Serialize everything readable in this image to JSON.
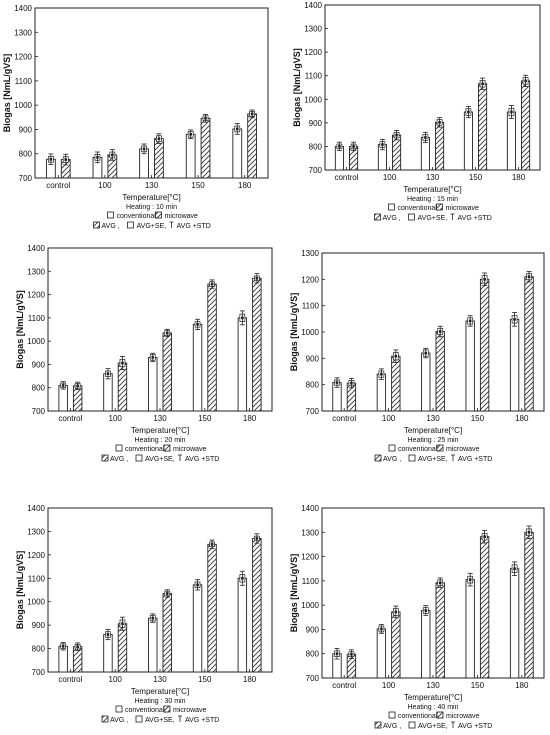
{
  "legend": {
    "series_conventional": "conventional,",
    "series_microwave": "microwave",
    "stat_avg": "AVG ,",
    "stat_se": "AVG+SE,",
    "stat_std": "AVG +STD"
  },
  "chart_data": [
    {
      "type": "bar",
      "ylabel": "Biogas [NmL/gVS]",
      "xlabel": "Temperature[°C]",
      "heating_label": "Heating : 10 min",
      "ylim": [
        700,
        1400
      ],
      "yticks": [
        700,
        800,
        900,
        1000,
        1100,
        1200,
        1300,
        1400
      ],
      "grid": false,
      "categories": [
        "control",
        "100",
        "130",
        "150",
        "180"
      ],
      "series": [
        {
          "name": "conventional",
          "values": [
            777,
            785,
            820,
            880,
            902
          ],
          "se": [
            12,
            12,
            12,
            12,
            12
          ],
          "std": [
            22,
            22,
            20,
            18,
            22
          ]
        },
        {
          "name": "microwave",
          "values": [
            776,
            795,
            862,
            946,
            964
          ],
          "se": [
            12,
            12,
            12,
            10,
            10
          ],
          "std": [
            22,
            22,
            20,
            16,
            16
          ]
        }
      ]
    },
    {
      "type": "bar",
      "ylabel": "Biogas [NmL/gVS]",
      "xlabel": "Temperature[°C]",
      "heating_label": "Heating : 15 min",
      "ylim": [
        700,
        1400
      ],
      "yticks": [
        700,
        800,
        900,
        1000,
        1100,
        1200,
        1300,
        1400
      ],
      "grid": false,
      "categories": [
        "control",
        "100",
        "130",
        "150",
        "180"
      ],
      "series": [
        {
          "name": "conventional",
          "values": [
            800,
            808,
            838,
            946,
            946
          ],
          "se": [
            10,
            12,
            12,
            14,
            16
          ],
          "std": [
            18,
            22,
            22,
            24,
            28
          ]
        },
        {
          "name": "microwave",
          "values": [
            800,
            848,
            902,
            1066,
            1078
          ],
          "se": [
            10,
            12,
            12,
            14,
            14
          ],
          "std": [
            18,
            20,
            20,
            24,
            24
          ]
        }
      ]
    },
    {
      "type": "bar",
      "ylabel": "Biogas [NmL/gVS]",
      "xlabel": "Temperature[°C]",
      "heating_label": "Heating : 20 min",
      "ylim": [
        700,
        1400
      ],
      "yticks": [
        700,
        800,
        900,
        1000,
        1100,
        1200,
        1300,
        1400
      ],
      "grid": false,
      "categories": [
        "control",
        "100",
        "130",
        "150",
        "180"
      ],
      "series": [
        {
          "name": "conventional",
          "values": [
            810,
            860,
            930,
            1072,
            1100
          ],
          "se": [
            10,
            12,
            12,
            12,
            16
          ],
          "std": [
            16,
            22,
            18,
            22,
            30
          ]
        },
        {
          "name": "microwave",
          "values": [
            808,
            906,
            1035,
            1245,
            1270
          ],
          "se": [
            10,
            16,
            10,
            10,
            10
          ],
          "std": [
            16,
            28,
            16,
            18,
            20
          ]
        }
      ]
    },
    {
      "type": "bar",
      "ylabel": "Biogas [NmL/gVS]",
      "xlabel": "Temperature[°C]",
      "heating_label": "Heating : 25 min",
      "ylim": [
        700,
        1300
      ],
      "yticks": [
        700,
        800,
        900,
        1000,
        1100,
        1200,
        1300
      ],
      "grid": false,
      "categories": [
        "control",
        "100",
        "130",
        "150",
        "180"
      ],
      "series": [
        {
          "name": "conventional",
          "values": [
            808,
            840,
            920,
            1042,
            1048
          ],
          "se": [
            10,
            12,
            12,
            12,
            14
          ],
          "std": [
            18,
            20,
            18,
            20,
            26
          ]
        },
        {
          "name": "microwave",
          "values": [
            806,
            908,
            1002,
            1200,
            1210
          ],
          "se": [
            10,
            14,
            12,
            14,
            12
          ],
          "std": [
            18,
            24,
            20,
            24,
            20
          ]
        }
      ]
    },
    {
      "type": "bar",
      "ylabel": "Biogas [NmL/gVS]",
      "xlabel": "Temperature[°C]",
      "heating_label": "Heating : 30 min",
      "ylim": [
        700,
        1400
      ],
      "yticks": [
        700,
        800,
        900,
        1000,
        1100,
        1200,
        1300,
        1400
      ],
      "grid": false,
      "categories": [
        "control",
        "100",
        "130",
        "150",
        "180"
      ],
      "series": [
        {
          "name": "conventional",
          "values": [
            810,
            860,
            930,
            1072,
            1100
          ],
          "se": [
            10,
            12,
            12,
            12,
            16
          ],
          "std": [
            16,
            22,
            18,
            22,
            30
          ]
        },
        {
          "name": "microwave",
          "values": [
            808,
            906,
            1035,
            1245,
            1270
          ],
          "se": [
            10,
            16,
            10,
            10,
            10
          ],
          "std": [
            16,
            28,
            16,
            18,
            20
          ]
        }
      ]
    },
    {
      "type": "bar",
      "ylabel": "Biogas [NmL/gVS]",
      "xlabel": "Temperature[°C]",
      "heating_label": "Heating : 40 min",
      "ylim": [
        700,
        1400
      ],
      "yticks": [
        700,
        800,
        900,
        1000,
        1100,
        1200,
        1300,
        1400
      ],
      "grid": false,
      "categories": [
        "control",
        "100",
        "130",
        "150",
        "180"
      ],
      "series": [
        {
          "name": "conventional",
          "values": [
            800,
            902,
            978,
            1105,
            1150
          ],
          "se": [
            12,
            12,
            12,
            14,
            16
          ],
          "std": [
            22,
            18,
            20,
            26,
            28
          ]
        },
        {
          "name": "microwave",
          "values": [
            798,
            972,
            1092,
            1282,
            1300
          ],
          "se": [
            10,
            14,
            12,
            14,
            14
          ],
          "std": [
            18,
            24,
            20,
            26,
            26
          ]
        }
      ]
    }
  ]
}
